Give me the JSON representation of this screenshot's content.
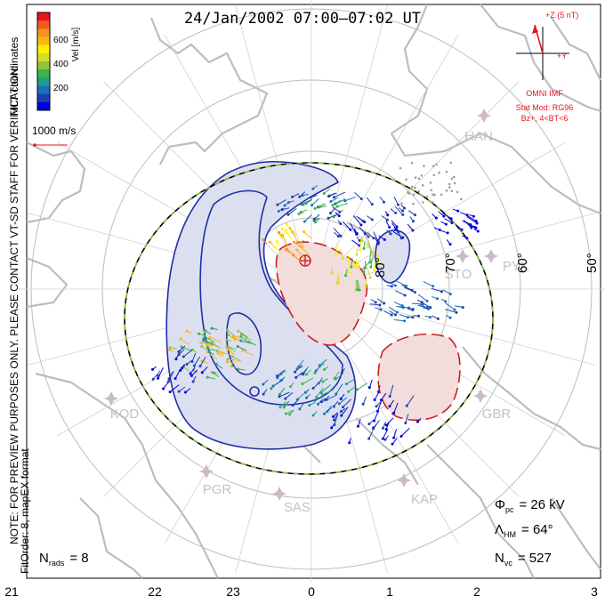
{
  "title": "24/Jan/2002 07:00–07:02 UT",
  "colorbar": {
    "axis_label": "Vel [m/s]",
    "ticks": [
      "600",
      "400",
      "200"
    ],
    "colors": [
      "#e8141c",
      "#f15a22",
      "#f7941d",
      "#fcb614",
      "#fff200",
      "#d7df23",
      "#8dc63f",
      "#39b54a",
      "#1e9c8a",
      "#1c6fb8",
      "#1c3fb0",
      "#0000e0"
    ]
  },
  "side_note_1": "MLT coordinates",
  "side_note_2": "NOTE: FOR PREVIEW PURPOSES ONLY. PLEASE CONTACT VT-SD STAFF FOR VERIFICATION.",
  "side_note_3": "FitOrder: 8, mapEX format",
  "reference_vector": {
    "label": "1000 m/s"
  },
  "imf": {
    "z_label": "+Z (5 nT)",
    "y_label": "+Y",
    "source": "OMNI IMF",
    "model": "Stat Mod: RG96",
    "condition": "Bz+, 4<BT<6"
  },
  "latitude_labels": [
    "80°",
    "70°",
    "60°",
    "50°"
  ],
  "stations": [
    "HAN",
    "STO",
    "PYK",
    "KOD",
    "PGR",
    "SAS",
    "KAP",
    "GBR"
  ],
  "stats": {
    "phi_symbol": "Φ",
    "phi_sub": "pc",
    "phi_value": "= 26 kV",
    "lambda_symbol": "Λ",
    "lambda_sub": "HM",
    "lambda_value": "= 64°",
    "nvc_symbol": "N",
    "nvc_sub": "vc",
    "nvc_value": "= 527",
    "nrads_symbol": "N",
    "nrads_sub": "rads",
    "nrads_value": "= 8"
  },
  "mlt_axis": [
    "21",
    "22",
    "23",
    "0",
    "1",
    "2",
    "3"
  ],
  "colors": {
    "negative_cell_fill": "#dcdff0",
    "negative_contour": "#1f2fa8",
    "positive_cell_fill": "#f2dcdc",
    "positive_contour": "#cc1f1f",
    "hmb_green": "#8dc63f",
    "imf_red": "#e8141c",
    "land": "#bdbdbd",
    "station": "#cbb8c8"
  }
}
